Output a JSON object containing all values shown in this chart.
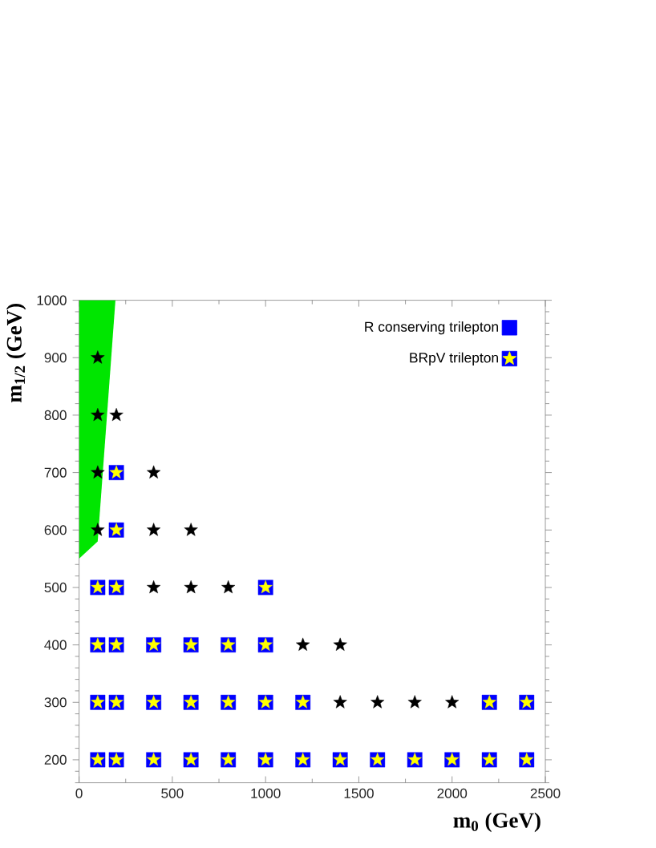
{
  "chart_data": {
    "type": "scatter",
    "xlabel": "m$_{0}$ (GeV)",
    "ylabel": "m$_{1/2}$ (GeV)",
    "xlim": [
      0,
      2500
    ],
    "xticks": [
      0,
      {
        "value": 250,
        "label": null
      },
      500,
      {
        "value": 750,
        "label": null
      },
      1000,
      {
        "value": 1250,
        "label": null
      },
      1500,
      {
        "value": 1750,
        "label": null
      },
      2000,
      {
        "value": 2250,
        "label": null
      },
      2500
    ],
    "ylim": [
      160,
      1000
    ],
    "yticks": [
      {
        "value": 160,
        "label": null
      },
      {
        "value": 180,
        "label": null
      },
      200,
      {
        "value": 220,
        "label": null
      },
      {
        "value": 240,
        "label": null
      },
      {
        "value": 260,
        "label": null
      },
      {
        "value": 280,
        "label": null
      },
      300,
      {
        "value": 320,
        "label": null
      },
      {
        "value": 340,
        "label": null
      },
      {
        "value": 360,
        "label": null
      },
      {
        "value": 380,
        "label": null
      },
      400,
      {
        "value": 420,
        "label": null
      },
      {
        "value": 440,
        "label": null
      },
      {
        "value": 460,
        "label": null
      },
      {
        "value": 480,
        "label": null
      },
      500,
      {
        "value": 520,
        "label": null
      },
      {
        "value": 540,
        "label": null
      },
      {
        "value": 560,
        "label": null
      },
      {
        "value": 580,
        "label": null
      },
      600,
      {
        "value": 620,
        "label": null
      },
      {
        "value": 640,
        "label": null
      },
      {
        "value": 660,
        "label": null
      },
      {
        "value": 680,
        "label": null
      },
      700,
      {
        "value": 720,
        "label": null
      },
      {
        "value": 740,
        "label": null
      },
      {
        "value": 760,
        "label": null
      },
      {
        "value": 780,
        "label": null
      },
      800,
      {
        "value": 820,
        "label": null
      },
      {
        "value": 840,
        "label": null
      },
      {
        "value": 860,
        "label": null
      },
      {
        "value": 880,
        "label": null
      },
      900,
      {
        "value": 920,
        "label": null
      },
      {
        "value": 940,
        "label": null
      },
      {
        "value": 960,
        "label": null
      },
      {
        "value": 980,
        "label": null
      },
      1000
    ],
    "legend": "top right",
    "series": [
      {
        "type": "area",
        "color": "#00e600",
        "x": [
          0,
          100,
          195,
          0
        ],
        "values": [
          550,
          580,
          1000,
          1000
        ]
      },
      {
        "name": "R conserving trilepton",
        "marker": "square",
        "color": "#0000ff",
        "x": [
          100,
          200,
          400,
          600,
          800,
          1000,
          1200,
          1400,
          1600,
          1800,
          2000,
          2200,
          2400,
          100,
          200,
          400,
          600,
          800,
          1000,
          1200,
          2200,
          2400,
          100,
          200,
          400,
          600,
          800,
          1000,
          100,
          200,
          1000,
          200,
          200
        ],
        "values": [
          200,
          200,
          200,
          200,
          200,
          200,
          200,
          200,
          200,
          200,
          200,
          200,
          200,
          300,
          300,
          300,
          300,
          300,
          300,
          300,
          300,
          300,
          400,
          400,
          400,
          400,
          400,
          400,
          500,
          500,
          500,
          600,
          700
        ]
      },
      {
        "name": "BRpV trilepton",
        "marker": "star",
        "color": "#ffff00",
        "x": [
          100,
          200,
          400,
          600,
          800,
          1000,
          1200,
          1400,
          1600,
          1800,
          2000,
          2200,
          2400,
          100,
          200,
          400,
          600,
          800,
          1000,
          1200,
          1400,
          1600,
          1800,
          2000,
          2200,
          2400,
          100,
          200,
          400,
          600,
          800,
          1000,
          1200,
          1400,
          100,
          200,
          400,
          600,
          800,
          1000,
          100,
          200,
          400,
          600,
          100,
          200,
          400,
          100,
          200,
          100
        ],
        "values": [
          200,
          200,
          200,
          200,
          200,
          200,
          200,
          200,
          200,
          200,
          200,
          200,
          200,
          300,
          300,
          300,
          300,
          300,
          300,
          300,
          300,
          300,
          300,
          300,
          300,
          300,
          400,
          400,
          400,
          400,
          400,
          400,
          400,
          400,
          500,
          500,
          500,
          500,
          500,
          500,
          600,
          600,
          600,
          600,
          700,
          700,
          700,
          800,
          800,
          900
        ],
        "colors": [
          "#ffff00",
          "#ffff00",
          "#ffff00",
          "#ffff00",
          "#ffff00",
          "#ffff00",
          "#ffff00",
          "#ffff00",
          "#ffff00",
          "#ffff00",
          "#ffff00",
          "#ffff00",
          "#ffff00",
          "#ffff00",
          "#ffff00",
          "#ffff00",
          "#ffff00",
          "#ffff00",
          "#ffff00",
          "#ffff00",
          "#000000",
          "#000000",
          "#000000",
          "#000000",
          "#ffff00",
          "#ffff00",
          "#ffff00",
          "#ffff00",
          "#ffff00",
          "#ffff00",
          "#ffff00",
          "#ffff00",
          "#000000",
          "#000000",
          "#ffff00",
          "#ffff00",
          "#000000",
          "#000000",
          "#000000",
          "#ffff00",
          "#000000",
          "#ffff00",
          "#000000",
          "#000000",
          "#000000",
          "#ffff00",
          "#000000",
          "#000000",
          "#000000",
          "#000000"
        ]
      }
    ]
  }
}
